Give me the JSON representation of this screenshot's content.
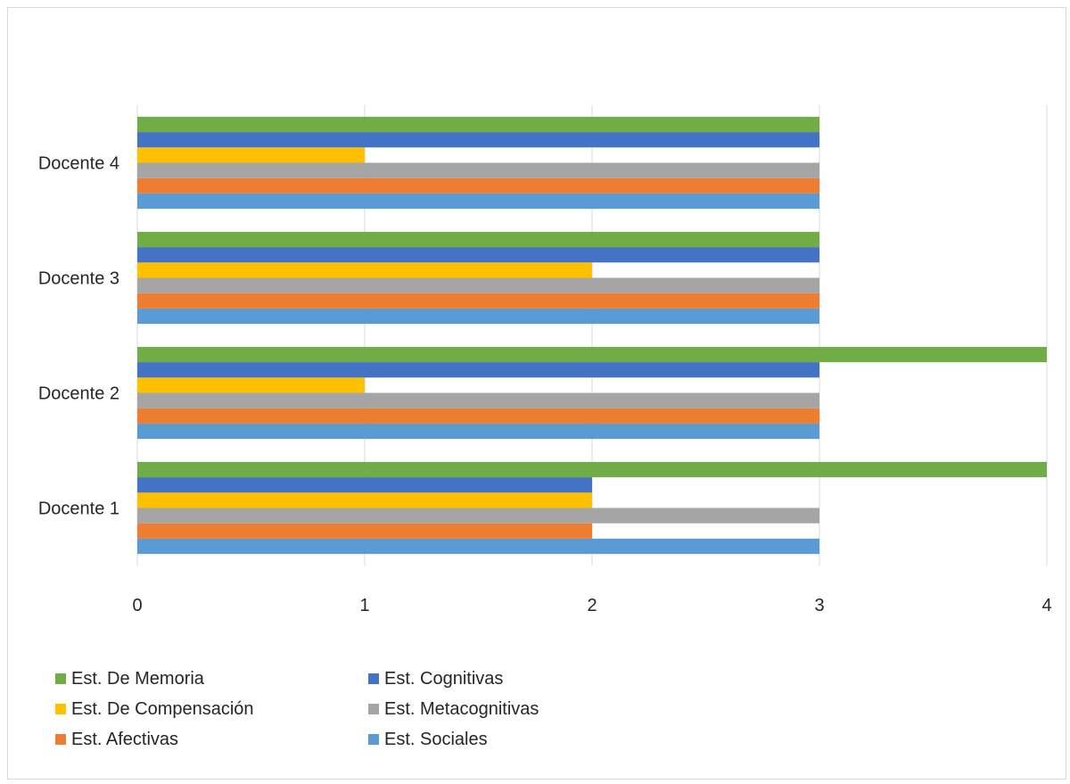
{
  "chart_data": {
    "type": "bar",
    "orientation": "horizontal",
    "categories": [
      "Docente 1",
      "Docente 2",
      "Docente 3",
      "Docente 4"
    ],
    "series": [
      {
        "name": "Est. Sociales",
        "color": "#5b9bd5",
        "values": [
          3,
          3,
          3,
          3
        ]
      },
      {
        "name": "Est. Afectivas",
        "color": "#ed7d31",
        "values": [
          2,
          3,
          3,
          3
        ]
      },
      {
        "name": "Est. Metacognitivas",
        "color": "#a5a5a5",
        "values": [
          3,
          3,
          3,
          3
        ]
      },
      {
        "name": "Est. De Compensación",
        "color": "#ffc000",
        "values": [
          2,
          1,
          2,
          1
        ]
      },
      {
        "name": "Est. Cognitivas",
        "color": "#4472c4",
        "values": [
          2,
          3,
          3,
          3
        ]
      },
      {
        "name": "Est. De Memoria",
        "color": "#70ad47",
        "values": [
          4,
          4,
          3,
          3
        ]
      }
    ],
    "xlim": [
      0,
      4
    ],
    "xticks": [
      "0",
      "1",
      "2",
      "3",
      "4"
    ],
    "grid": true,
    "legend_position": "bottom",
    "legend_order": [
      "Est. De Memoria",
      "Est. Cognitivas",
      "Est. De Compensación",
      "Est. Metacognitivas",
      "Est. Afectivas",
      "Est. Sociales"
    ]
  }
}
